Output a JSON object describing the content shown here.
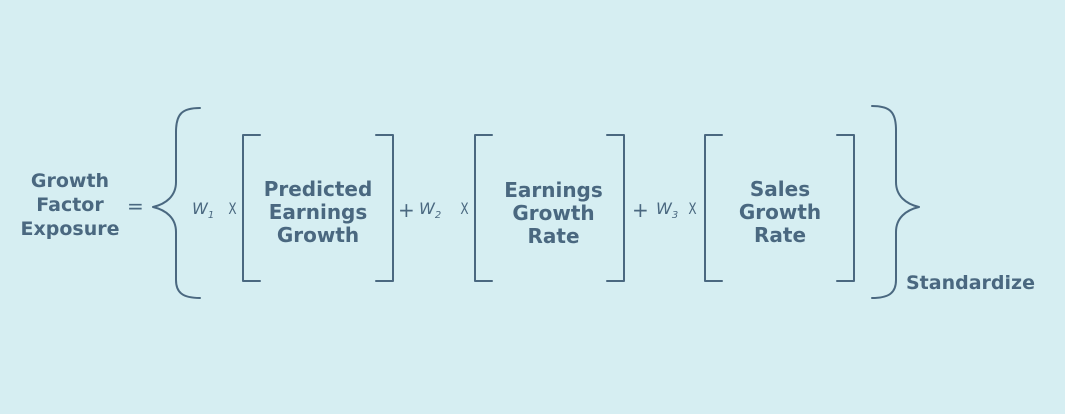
{
  "formula": {
    "lhs": [
      "Growth",
      "Factor",
      "Exposure"
    ],
    "equals": "=",
    "terms": [
      {
        "weight": "W",
        "weight_sub": "1",
        "times": "X",
        "box": [
          "Predicted",
          "Earnings",
          "Growth"
        ]
      },
      {
        "plus": "+",
        "weight": "W",
        "weight_sub": "2",
        "times": "X",
        "box": [
          "Earnings",
          "Growth",
          "Rate"
        ]
      },
      {
        "plus": "+",
        "weight": "W",
        "weight_sub": "3",
        "times": "X",
        "box": [
          "Sales",
          "Growth",
          "Rate"
        ]
      }
    ],
    "suffix": "Standardize"
  },
  "colors": {
    "background": "#d6eef2",
    "text": "#4a6880"
  }
}
